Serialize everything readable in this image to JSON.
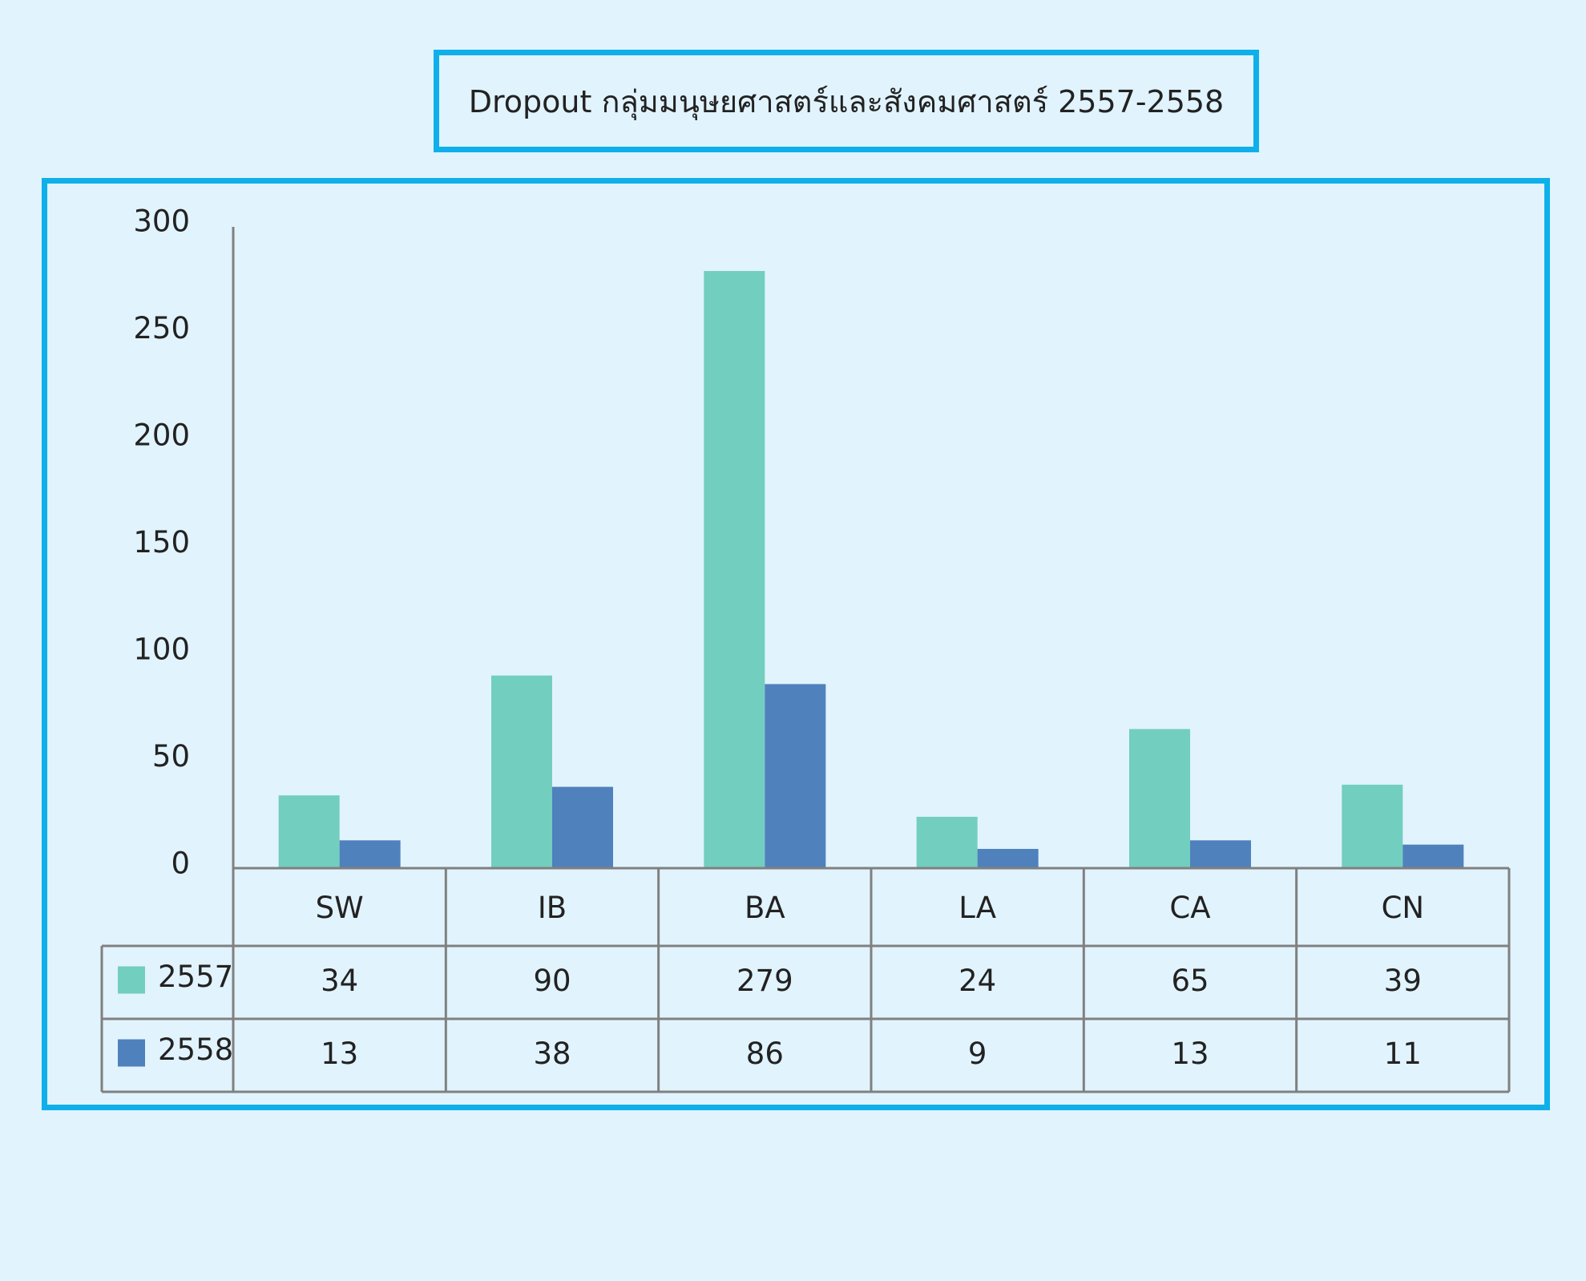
{
  "colors": {
    "background": "#e1f3fd",
    "frame": "#0fb0ea",
    "grid_line": "#808080",
    "text": "#222222"
  },
  "chart_data": {
    "type": "bar",
    "title": "Dropout กลุ่มมนุษยศาสตร์และสังคมศาสตร์ 2557-2558",
    "categories": [
      "SW",
      "IB",
      "BA",
      "LA",
      "CA",
      "CN"
    ],
    "series": [
      {
        "name": "2557",
        "color": "#72cebf",
        "values": [
          34,
          90,
          279,
          24,
          65,
          39
        ]
      },
      {
        "name": "2558",
        "color": "#4f81bd",
        "values": [
          13,
          38,
          86,
          9,
          13,
          11
        ]
      }
    ],
    "ylim": [
      0,
      300
    ],
    "yticks": [
      0,
      50,
      100,
      150,
      200,
      250,
      300
    ],
    "grid": false,
    "legend": "data-table",
    "show_data_table": true
  }
}
